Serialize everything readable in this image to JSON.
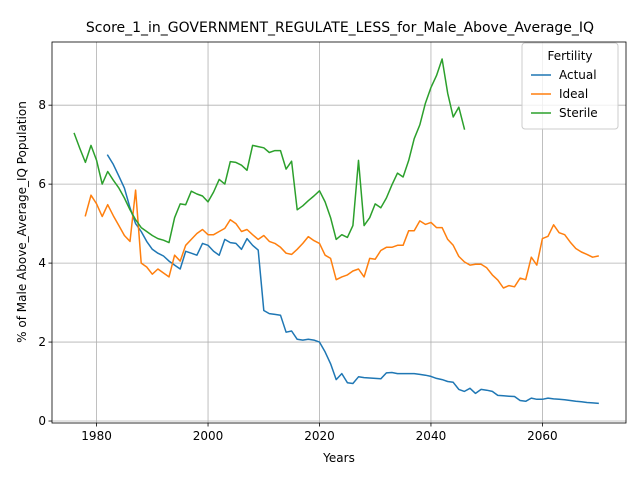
{
  "chart_data": {
    "type": "line",
    "title": "Score_1_in_GOVERNMENT_REGULATE_LESS_for_Male_Above_Average_IQ",
    "xlabel": "Years",
    "ylabel": "% of Male Above_Average_IQ Population",
    "xlim": [
      1972,
      2075
    ],
    "ylim": [
      -0.05,
      9.6
    ],
    "xticks": [
      1980,
      2000,
      2020,
      2040,
      2060
    ],
    "yticks": [
      0,
      2,
      4,
      6,
      8
    ],
    "grid": true,
    "legend": {
      "title": "Fertility",
      "placement": "top-right"
    },
    "series": [
      {
        "name": "Actual",
        "color": "#1f77b4",
        "x": [
          1982,
          1983,
          1984,
          1985,
          1986,
          1987,
          1988,
          1989,
          1990,
          1991,
          1992,
          1993,
          1994,
          1995,
          1996,
          1997,
          1998,
          1999,
          2000,
          2001,
          2002,
          2003,
          2004,
          2005,
          2006,
          2007,
          2008,
          2009,
          2010,
          2011,
          2012,
          2013,
          2014,
          2015,
          2016,
          2017,
          2018,
          2019,
          2020,
          2021,
          2022,
          2023,
          2024,
          2025,
          2026,
          2027,
          2028,
          2029,
          2030,
          2031,
          2032,
          2033,
          2034,
          2035,
          2036,
          2037,
          2038,
          2039,
          2040,
          2041,
          2042,
          2043,
          2044,
          2045,
          2046,
          2047,
          2048,
          2049,
          2050,
          2051,
          2052,
          2053,
          2054,
          2055,
          2056,
          2057,
          2058,
          2059,
          2060,
          2061,
          2062,
          2063,
          2064,
          2065,
          2066,
          2067,
          2068,
          2069,
          2070
        ],
        "y": [
          6.73,
          6.5,
          6.2,
          5.9,
          5.4,
          5.0,
          4.8,
          4.55,
          4.35,
          4.25,
          4.18,
          4.05,
          3.95,
          3.85,
          4.3,
          4.25,
          4.2,
          4.5,
          4.45,
          4.3,
          4.2,
          4.6,
          4.52,
          4.5,
          4.35,
          4.62,
          4.45,
          4.33,
          2.8,
          2.72,
          2.7,
          2.68,
          2.25,
          2.28,
          2.07,
          2.05,
          2.07,
          2.05,
          2.0,
          1.75,
          1.45,
          1.05,
          1.2,
          0.97,
          0.95,
          1.12,
          1.1,
          1.09,
          1.08,
          1.07,
          1.22,
          1.23,
          1.2,
          1.2,
          1.2,
          1.2,
          1.18,
          1.16,
          1.13,
          1.08,
          1.05,
          1.0,
          0.98,
          0.8,
          0.75,
          0.83,
          0.7,
          0.8,
          0.78,
          0.75,
          0.65,
          0.64,
          0.63,
          0.62,
          0.52,
          0.5,
          0.58,
          0.55,
          0.55,
          0.58,
          0.56,
          0.55,
          0.54,
          0.52,
          0.5,
          0.49,
          0.47,
          0.46,
          0.45
        ]
      },
      {
        "name": "Ideal",
        "color": "#ff7f0e",
        "x": [
          1978,
          1979,
          1980,
          1981,
          1982,
          1983,
          1984,
          1985,
          1986,
          1987,
          1988,
          1989,
          1990,
          1991,
          1992,
          1993,
          1994,
          1995,
          1996,
          1997,
          1998,
          1999,
          2000,
          2001,
          2002,
          2003,
          2004,
          2005,
          2006,
          2007,
          2008,
          2009,
          2010,
          2011,
          2012,
          2013,
          2014,
          2015,
          2016,
          2017,
          2018,
          2019,
          2020,
          2021,
          2022,
          2023,
          2024,
          2025,
          2026,
          2027,
          2028,
          2029,
          2030,
          2031,
          2032,
          2033,
          2034,
          2035,
          2036,
          2037,
          2038,
          2039,
          2040,
          2041,
          2042,
          2043,
          2044,
          2045,
          2046,
          2047,
          2048,
          2049,
          2050,
          2051,
          2052,
          2053,
          2054,
          2055,
          2056,
          2057,
          2058,
          2059,
          2060,
          2061,
          2062,
          2063,
          2064,
          2065,
          2066,
          2067,
          2068,
          2069,
          2070
        ],
        "y": [
          5.2,
          5.72,
          5.5,
          5.18,
          5.48,
          5.2,
          4.95,
          4.7,
          4.55,
          5.85,
          4.0,
          3.9,
          3.72,
          3.85,
          3.75,
          3.65,
          4.2,
          4.05,
          4.45,
          4.6,
          4.75,
          4.85,
          4.72,
          4.72,
          4.8,
          4.88,
          5.1,
          5.0,
          4.8,
          4.85,
          4.72,
          4.6,
          4.7,
          4.55,
          4.5,
          4.4,
          4.25,
          4.22,
          4.35,
          4.5,
          4.67,
          4.57,
          4.5,
          4.2,
          4.12,
          3.58,
          3.65,
          3.7,
          3.8,
          3.85,
          3.65,
          4.12,
          4.1,
          4.32,
          4.4,
          4.4,
          4.45,
          4.45,
          4.82,
          4.82,
          5.07,
          4.98,
          5.03,
          4.9,
          4.9,
          4.6,
          4.45,
          4.17,
          4.03,
          3.95,
          3.97,
          3.97,
          3.88,
          3.7,
          3.57,
          3.37,
          3.43,
          3.4,
          3.62,
          3.58,
          4.15,
          3.95,
          4.62,
          4.68,
          4.97,
          4.77,
          4.72,
          4.53,
          4.37,
          4.28,
          4.22,
          4.15,
          4.18
        ]
      },
      {
        "name": "Sterile",
        "color": "#2ca02c",
        "x": [
          1976,
          1977,
          1978,
          1979,
          1980,
          1981,
          1982,
          1983,
          1984,
          1985,
          1986,
          1987,
          1988,
          1989,
          1990,
          1991,
          1992,
          1993,
          1994,
          1995,
          1996,
          1997,
          1998,
          1999,
          2000,
          2001,
          2002,
          2003,
          2004,
          2005,
          2006,
          2007,
          2008,
          2009,
          2010,
          2011,
          2012,
          2013,
          2014,
          2015,
          2016,
          2017,
          2018,
          2019,
          2020,
          2021,
          2022,
          2023,
          2024,
          2025,
          2026,
          2027,
          2028,
          2029,
          2030,
          2031,
          2032,
          2033,
          2034,
          2035,
          2036,
          2037,
          2038,
          2039,
          2040,
          2041,
          2042,
          2043,
          2044,
          2045,
          2046
        ],
        "y": [
          7.28,
          6.9,
          6.55,
          6.98,
          6.6,
          6.0,
          6.32,
          6.1,
          5.9,
          5.65,
          5.35,
          5.1,
          4.9,
          4.8,
          4.7,
          4.62,
          4.58,
          4.52,
          5.15,
          5.5,
          5.48,
          5.82,
          5.75,
          5.7,
          5.55,
          5.8,
          6.12,
          6.0,
          6.57,
          6.55,
          6.48,
          6.35,
          6.98,
          6.95,
          6.92,
          6.8,
          6.85,
          6.85,
          6.38,
          6.58,
          5.35,
          5.45,
          5.58,
          5.7,
          5.83,
          5.55,
          5.15,
          4.6,
          4.72,
          4.65,
          4.95,
          6.6,
          4.95,
          5.15,
          5.5,
          5.4,
          5.65,
          5.98,
          6.28,
          6.18,
          6.6,
          7.15,
          7.5,
          8.05,
          8.45,
          8.75,
          9.17,
          8.3,
          7.7,
          7.95,
          7.4
        ]
      }
    ]
  }
}
